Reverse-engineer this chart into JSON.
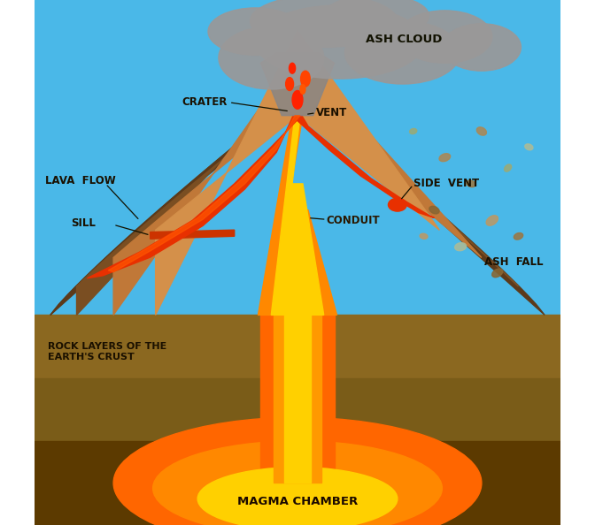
{
  "sky_color": "#4ab8e8",
  "ground_top_color": "#8B6820",
  "ground_mid_color": "#7A5C18",
  "ground_bot_color": "#5C3A00",
  "volcano_outer_color": "#5C3A1A",
  "volcano_mid_color": "#7A4E22",
  "volcano_inner_color": "#C07838",
  "volcano_center_color": "#D4904A",
  "conduit_color": "#FF8800",
  "conduit_bright": "#FFD000",
  "magma_outer": "#FF6600",
  "magma_bright": "#FFD000",
  "lava_red": "#E83000",
  "lava_orange": "#FF5500",
  "ash_gray": "#9A9898",
  "ash_dark": "#7A7878",
  "ash_col_gray": "#888686",
  "label_color": "#1a1000",
  "label_color2": "#2a1800",
  "sill_color": "#CC3300",
  "ash_fall_colors": [
    "#AA7733",
    "#996622",
    "#BB8844",
    "#CC9955",
    "#AABB88"
  ],
  "labels": {
    "ash_cloud": "ASH CLOUD",
    "crater": "CRATER",
    "vent": "VENT",
    "side_vent": "SIDE  VENT",
    "lava_flow": "LAVA  FLOW",
    "sill": "SILL",
    "conduit": "CONDUIT",
    "ash_fall": "ASH  FALL",
    "rock_layers": "ROCK LAYERS OF THE\nEARTH'S CRUST",
    "magma_chamber": "MAGMA CHAMBER"
  },
  "figsize": [
    6.72,
    5.94
  ],
  "dpi": 100
}
